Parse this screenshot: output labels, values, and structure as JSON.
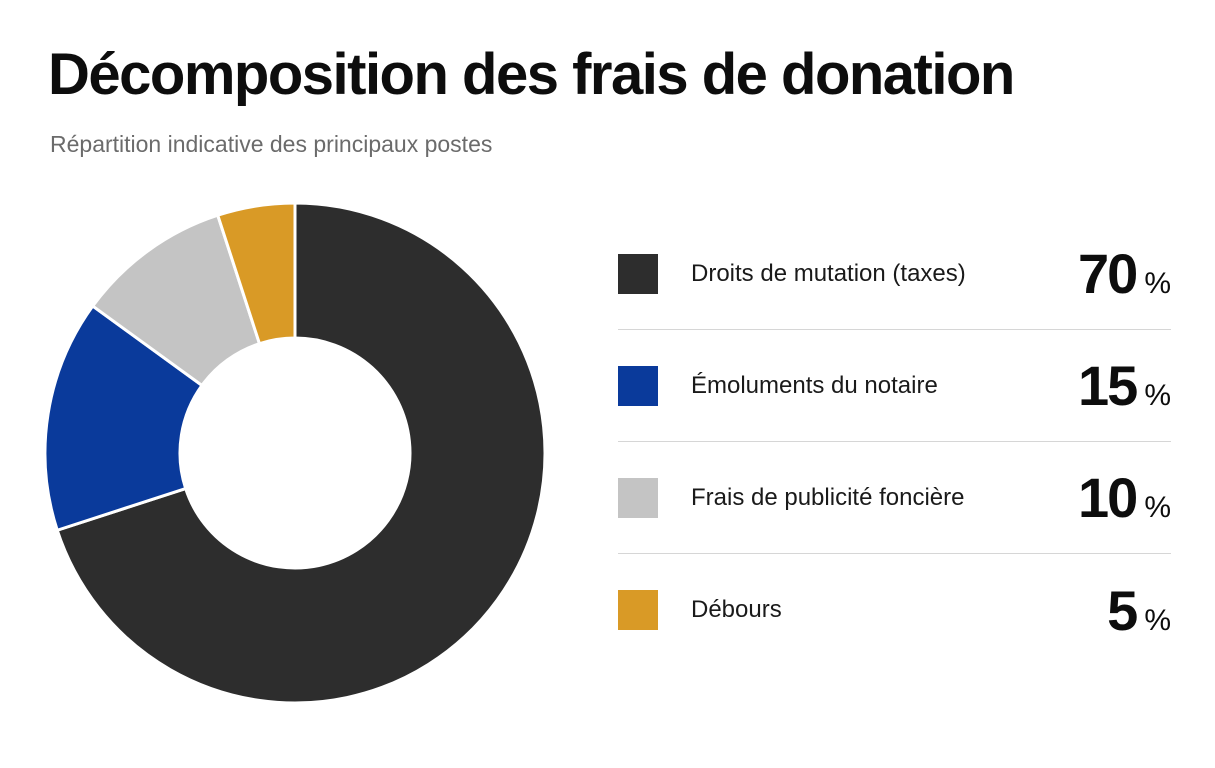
{
  "title": "Décomposition des frais de donation",
  "subtitle": "Répartition indicative des principaux postes",
  "chart_data": {
    "type": "pie",
    "variant": "donut",
    "categories": [
      "Droits de mutation (taxes)",
      "Émoluments du notaire",
      "Frais de publicité foncière",
      "Débours"
    ],
    "values": [
      70,
      15,
      10,
      5
    ],
    "value_unit": "%",
    "colors": [
      "#2d2d2d",
      "#0a3a9b",
      "#c4c4c4",
      "#d99a26"
    ],
    "legend_position": "right",
    "slice_order": "clockwise from top"
  },
  "legend": {
    "items": [
      {
        "label": "Droits de mutation (taxes)",
        "value": "70",
        "unit": "%",
        "color": "#2d2d2d"
      },
      {
        "label": "Émoluments du notaire",
        "value": "15",
        "unit": "%",
        "color": "#0a3a9b"
      },
      {
        "label": "Frais de publicité foncière",
        "value": "10",
        "unit": "%",
        "color": "#c4c4c4"
      },
      {
        "label": "Débours",
        "value": "5",
        "unit": "%",
        "color": "#d99a26"
      }
    ]
  }
}
